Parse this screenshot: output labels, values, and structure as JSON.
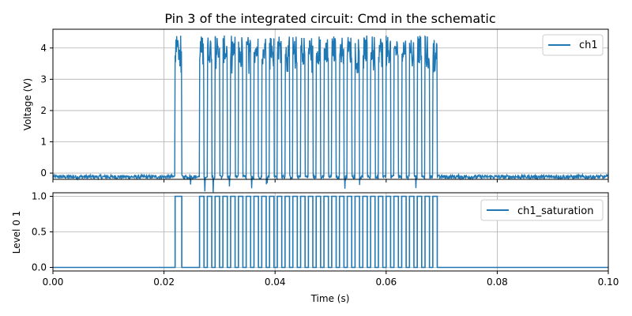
{
  "chart_data": [
    {
      "type": "line",
      "title": "Pin 3 of the integrated circuit: Cmd in the schematic",
      "xlabel": "",
      "ylabel": "Voltage (V)",
      "xlim": [
        0.0,
        0.1
      ],
      "ylim": [
        -0.2,
        4.6
      ],
      "yticks": [
        "0",
        "1",
        "2",
        "3",
        "4"
      ],
      "grid": true,
      "legend_position": "top-right",
      "series": [
        {
          "name": "ch1",
          "color": "#1f77b4",
          "baseline_v": -0.12,
          "high_v": 3.95,
          "pulses": [
            [
              0.022,
              0.0232
            ],
            [
              0.0264,
              0.0272
            ],
            [
              0.0278,
              0.0286
            ],
            [
              0.0292,
              0.03
            ],
            [
              0.0306,
              0.0314
            ],
            [
              0.032,
              0.0328
            ],
            [
              0.0334,
              0.0342
            ],
            [
              0.0348,
              0.0356
            ],
            [
              0.0362,
              0.037
            ],
            [
              0.0376,
              0.0384
            ],
            [
              0.039,
              0.0398
            ],
            [
              0.0404,
              0.0412
            ],
            [
              0.0418,
              0.0426
            ],
            [
              0.0432,
              0.044
            ],
            [
              0.0446,
              0.0454
            ],
            [
              0.046,
              0.0468
            ],
            [
              0.0474,
              0.0482
            ],
            [
              0.0488,
              0.0496
            ],
            [
              0.0502,
              0.051
            ],
            [
              0.0516,
              0.0524
            ],
            [
              0.053,
              0.0538
            ],
            [
              0.0544,
              0.0552
            ],
            [
              0.0558,
              0.0566
            ],
            [
              0.0572,
              0.058
            ],
            [
              0.0586,
              0.0594
            ],
            [
              0.06,
              0.0608
            ],
            [
              0.0614,
              0.0622
            ],
            [
              0.0628,
              0.0636
            ],
            [
              0.0642,
              0.065
            ],
            [
              0.0656,
              0.0664
            ],
            [
              0.067,
              0.0678
            ],
            [
              0.0684,
              0.0692
            ]
          ]
        }
      ]
    },
    {
      "type": "line",
      "title": "",
      "xlabel": "Time (s)",
      "ylabel": "Level 0 1",
      "xlim": [
        0.0,
        0.1
      ],
      "ylim": [
        -0.05,
        1.05
      ],
      "xticks": [
        "0.00",
        "0.02",
        "0.04",
        "0.06",
        "0.08",
        "0.10"
      ],
      "yticks": [
        "0.0",
        "0.5",
        "1.0"
      ],
      "grid": true,
      "legend_position": "top-right",
      "series": [
        {
          "name": "ch1_saturation",
          "color": "#1f77b4",
          "low": 0,
          "high": 1
        }
      ]
    }
  ]
}
